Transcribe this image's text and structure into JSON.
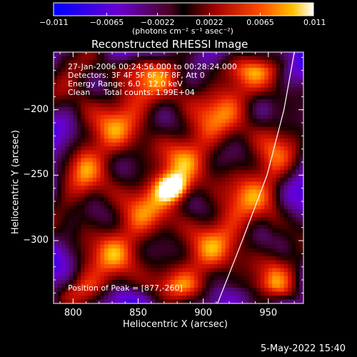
{
  "chart_data": {
    "type": "heatmap",
    "title": "Reconstructed RHESSI Image",
    "xlabel": "Heliocentric X (arcsec)",
    "ylabel": "Heliocentric Y (arcsec)",
    "xlim": [
      785,
      977
    ],
    "ylim": [
      -348,
      -156
    ],
    "x_ticks": [
      800,
      850,
      900,
      950
    ],
    "y_ticks": [
      -200,
      -250,
      -300
    ],
    "x_tick_labels": [
      "800",
      "850",
      "900",
      "950"
    ],
    "y_tick_labels": [
      "−200",
      "−250",
      "−300"
    ],
    "colorbar": {
      "range": [
        -0.011,
        0.011
      ],
      "ticks": [
        -0.011,
        -0.0065,
        -0.0022,
        0.0022,
        0.0065,
        0.011
      ],
      "tick_labels": [
        "−0.011",
        "−0.0065",
        "−0.0022",
        "0.0022",
        "0.0065",
        "0.011"
      ],
      "unit_label": "(photons cm⁻² s⁻¹ asec⁻²)"
    },
    "peak": {
      "x": 877,
      "y": -260,
      "value": 0.011
    },
    "limb_curve": [
      [
        911,
        -348
      ],
      [
        930,
        -300
      ],
      [
        949,
        -250
      ],
      [
        962,
        -200
      ],
      [
        970,
        -156
      ]
    ],
    "grid": false,
    "colors": {
      "background": "#000000",
      "text": "#ffffff"
    }
  },
  "annotations": {
    "time_range": "27-Jan-2006 00:24:56.000 to 00:28:24.000",
    "detectors": "Detectors: 3F 4F 5F 6F 7F 8F, Att 0",
    "energy": "Energy Range: 6.0 - 12.0 keV",
    "clean": "Clean",
    "total_counts": "Total counts: 1.99E+04",
    "peak_position": "Position of Peak = [877,-260]"
  },
  "footer": {
    "datestamp": "5-May-2022 15:40"
  }
}
